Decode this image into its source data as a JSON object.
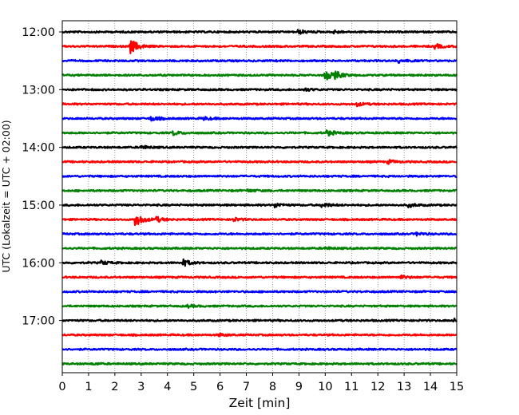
{
  "chart_data": {
    "type": "line",
    "title": "",
    "xlabel": "Zeit  [min]",
    "ylabel": "UTC (Lokalzeit = UTC + 02:00)",
    "xlim": [
      0,
      15
    ],
    "x_ticks": [
      "0",
      "1",
      "2",
      "3",
      "4",
      "5",
      "6",
      "7",
      "8",
      "9",
      "10",
      "11",
      "12",
      "13",
      "14",
      "15"
    ],
    "y_ticks": [
      "12:00",
      "13:00",
      "14:00",
      "15:00",
      "16:00",
      "17:00"
    ],
    "grid": "vertical-dotted",
    "trace_colors": [
      "#000000",
      "#ff0000",
      "#0000ff",
      "#008000"
    ],
    "traces": [
      {
        "start": "12:00",
        "color": "#000000",
        "events": [
          {
            "t": 9.0,
            "amp": 0.25
          },
          {
            "t": 10.3,
            "amp": 0.2
          }
        ]
      },
      {
        "start": "12:15",
        "color": "#ff0000",
        "events": [
          {
            "t": 2.6,
            "amp": 1.0
          },
          {
            "t": 14.2,
            "amp": 0.3
          }
        ]
      },
      {
        "start": "12:30",
        "color": "#0000ff",
        "events": [
          {
            "t": 12.8,
            "amp": 0.25
          }
        ]
      },
      {
        "start": "12:45",
        "color": "#008000",
        "events": [
          {
            "t": 10.0,
            "amp": 0.7
          },
          {
            "t": 10.4,
            "amp": 0.4
          }
        ]
      },
      {
        "start": "13:00",
        "color": "#000000",
        "events": [
          {
            "t": 9.2,
            "amp": 0.2
          }
        ]
      },
      {
        "start": "13:15",
        "color": "#ff0000",
        "events": [
          {
            "t": 11.2,
            "amp": 0.25
          }
        ]
      },
      {
        "start": "13:30",
        "color": "#0000ff",
        "events": [
          {
            "t": 3.4,
            "amp": 0.3
          },
          {
            "t": 5.4,
            "amp": 0.2
          }
        ]
      },
      {
        "start": "13:45",
        "color": "#008000",
        "events": [
          {
            "t": 4.2,
            "amp": 0.3
          },
          {
            "t": 10.1,
            "amp": 0.35
          }
        ]
      },
      {
        "start": "14:00",
        "color": "#000000",
        "events": [
          {
            "t": 3.0,
            "amp": 0.25
          }
        ]
      },
      {
        "start": "14:15",
        "color": "#ff0000",
        "events": [
          {
            "t": 12.4,
            "amp": 0.25
          }
        ]
      },
      {
        "start": "14:30",
        "color": "#0000ff",
        "events": []
      },
      {
        "start": "14:45",
        "color": "#008000",
        "events": [
          {
            "t": 7.1,
            "amp": 0.15
          }
        ]
      },
      {
        "start": "15:00",
        "color": "#000000",
        "events": [
          {
            "t": 8.1,
            "amp": 0.3
          },
          {
            "t": 9.9,
            "amp": 0.3
          },
          {
            "t": 13.2,
            "amp": 0.25
          }
        ]
      },
      {
        "start": "15:15",
        "color": "#ff0000",
        "events": [
          {
            "t": 2.8,
            "amp": 0.9
          },
          {
            "t": 3.6,
            "amp": 0.3
          },
          {
            "t": 6.5,
            "amp": 0.25
          }
        ]
      },
      {
        "start": "15:30",
        "color": "#0000ff",
        "events": [
          {
            "t": 13.5,
            "amp": 0.2
          }
        ]
      },
      {
        "start": "15:45",
        "color": "#008000",
        "events": [
          {
            "t": 10.0,
            "amp": 0.15
          }
        ]
      },
      {
        "start": "16:00",
        "color": "#000000",
        "events": [
          {
            "t": 1.5,
            "amp": 0.25
          },
          {
            "t": 4.6,
            "amp": 0.45
          }
        ]
      },
      {
        "start": "16:15",
        "color": "#ff0000",
        "events": [
          {
            "t": 12.9,
            "amp": 0.2
          }
        ]
      },
      {
        "start": "16:30",
        "color": "#0000ff",
        "events": []
      },
      {
        "start": "16:45",
        "color": "#008000",
        "events": [
          {
            "t": 4.8,
            "amp": 0.15
          }
        ]
      },
      {
        "start": "17:00",
        "color": "#000000",
        "events": [
          {
            "t": 14.9,
            "amp": 0.2
          }
        ]
      },
      {
        "start": "17:15",
        "color": "#ff0000",
        "events": [
          {
            "t": 6.0,
            "amp": 0.15
          }
        ]
      },
      {
        "start": "17:30",
        "color": "#0000ff",
        "events": []
      },
      {
        "start": "17:45",
        "color": "#008000",
        "events": [
          {
            "t": 1.2,
            "amp": 0.1
          }
        ]
      }
    ]
  }
}
